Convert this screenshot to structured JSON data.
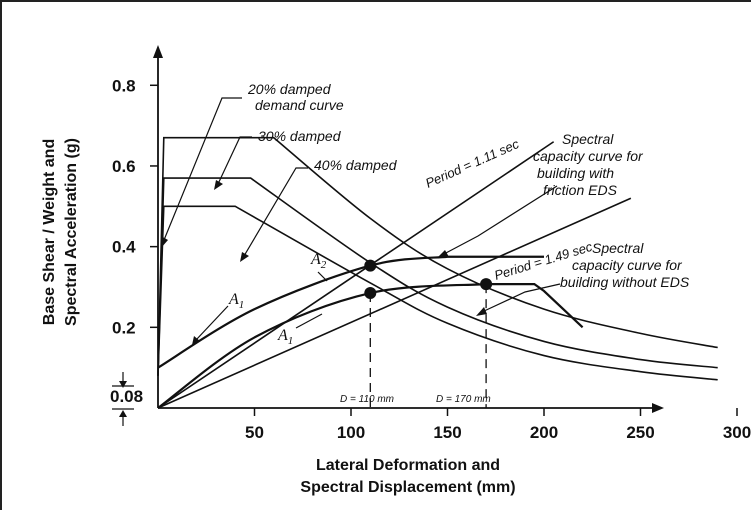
{
  "chart_data": {
    "type": "line",
    "title": "",
    "xlabel": [
      "Lateral Deformation and",
      "Spectral Displacement (mm)"
    ],
    "ylabel": [
      "Base Shear / Weight and",
      "Spectral Acceleration (g)"
    ],
    "xlim": [
      0,
      320
    ],
    "ylim": [
      0,
      0.9
    ],
    "x_ticks": [
      "50",
      "100",
      "150",
      "200",
      "250",
      "300"
    ],
    "y_ticks": [
      "0.2",
      "0.4",
      "0.6",
      "0.8"
    ],
    "y_extra_tick": "0.08",
    "grid": false,
    "series": [
      {
        "name": "20% damped demand curve",
        "x": [
          0,
          3,
          60,
          110,
          150,
          200,
          250,
          290
        ],
        "y": [
          0.08,
          0.67,
          0.67,
          0.47,
          0.345,
          0.245,
          0.185,
          0.15
        ]
      },
      {
        "name": "30% damped",
        "x": [
          0,
          3,
          48,
          110,
          150,
          200,
          250,
          290
        ],
        "y": [
          0.08,
          0.57,
          0.57,
          0.36,
          0.25,
          0.165,
          0.12,
          0.1
        ]
      },
      {
        "name": "40% damped",
        "x": [
          0,
          3,
          40,
          110,
          150,
          200,
          250,
          290
        ],
        "y": [
          0.08,
          0.5,
          0.5,
          0.31,
          0.21,
          0.13,
          0.09,
          0.07
        ]
      },
      {
        "name": "Spectral capacity curve for building with friction EDS",
        "x": [
          0,
          50,
          110,
          150,
          200
        ],
        "y": [
          0.1,
          0.245,
          0.353,
          0.375,
          0.375
        ]
      },
      {
        "name": "Spectral capacity curve for building without EDS",
        "x": [
          0,
          50,
          110,
          170,
          195,
          200,
          220
        ],
        "y": [
          0.0,
          0.175,
          0.285,
          0.307,
          0.307,
          0.29,
          0.2
        ]
      },
      {
        "name": "Period = 1.11 sec",
        "x": [
          0,
          205
        ],
        "y": [
          0.0,
          0.66
        ]
      },
      {
        "name": "Period = 1.49 sec",
        "x": [
          0,
          245
        ],
        "y": [
          0.0,
          0.52
        ]
      }
    ],
    "points": [
      {
        "label": "A2",
        "x": 110,
        "y": 0.353
      },
      {
        "label": "A1",
        "x": 110,
        "y": 0.285
      },
      {
        "label": "",
        "x": 170,
        "y": 0.307
      }
    ],
    "annotations": {
      "demand20": [
        "20% damped",
        "demand curve"
      ],
      "damped30": "30% damped",
      "damped40": "40% damped",
      "period111": "Period = 1.11 sec",
      "period149": "Period = 1.49 sec",
      "cap_with": [
        "Spectral",
        "capacity curve for",
        "building with",
        "friction EDS"
      ],
      "cap_without": [
        "Spectral",
        "capacity curve for",
        "building without EDS"
      ],
      "d110": "D = 110 mm",
      "d170": "D = 170 mm",
      "A1_left": {
        "base": "A",
        "sub": "1"
      },
      "A1_point": {
        "base": "A",
        "sub": "1"
      },
      "A2_point": {
        "base": "A",
        "sub": "2"
      }
    }
  }
}
